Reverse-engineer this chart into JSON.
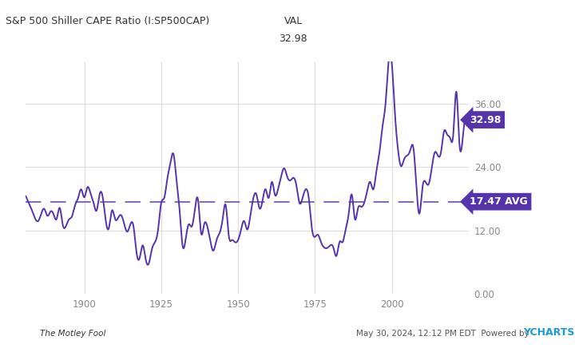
{
  "title_left": "S&P 500 Shiller CAPE Ratio (I:SP500CAP)",
  "title_center": "VAL",
  "value_center": "32.98",
  "current_value": 32.98,
  "avg_value": 17.47,
  "avg_label": "17.47 AVG",
  "current_label": "32.98",
  "line_color": "#5533aa",
  "avg_line_color": "#7755bb",
  "label_bg_color": "#5533aa",
  "label_text_color": "#ffffff",
  "ylim": [
    0,
    44
  ],
  "yticks": [
    0.0,
    12.0,
    24.0,
    36.0
  ],
  "ytick_labels": [
    "0.00",
    "12.00",
    "24.00",
    "36.00"
  ],
  "bg_color": "#ffffff",
  "plot_bg_color": "#ffffff",
  "footer_left": "The Motley Fool",
  "footer_right": "May 30, 2024, 12:12 PM EDT  Powered by ",
  "footer_ycharts": "YCHARTS",
  "grid_color": "#dddddd",
  "line_width": 1.4,
  "xticks": [
    1900,
    1925,
    1950,
    1975,
    2000
  ],
  "xmin": 1881,
  "xmax": 2025,
  "cape_years": [
    1881,
    1882,
    1883,
    1884,
    1885,
    1886,
    1887,
    1888,
    1889,
    1890,
    1891,
    1892,
    1893,
    1894,
    1895,
    1896,
    1897,
    1898,
    1899,
    1900,
    1901,
    1902,
    1903,
    1904,
    1905,
    1906,
    1907,
    1908,
    1909,
    1910,
    1911,
    1912,
    1913,
    1914,
    1915,
    1916,
    1917,
    1918,
    1919,
    1920,
    1921,
    1922,
    1923,
    1924,
    1925,
    1926,
    1927,
    1928,
    1929,
    1930,
    1931,
    1932,
    1933,
    1934,
    1935,
    1936,
    1937,
    1938,
    1939,
    1940,
    1941,
    1942,
    1943,
    1944,
    1945,
    1946,
    1947,
    1948,
    1949,
    1950,
    1951,
    1952,
    1953,
    1954,
    1955,
    1956,
    1957,
    1958,
    1959,
    1960,
    1961,
    1962,
    1963,
    1964,
    1965,
    1966,
    1967,
    1968,
    1969,
    1970,
    1971,
    1972,
    1973,
    1974,
    1975,
    1976,
    1977,
    1978,
    1979,
    1980,
    1981,
    1982,
    1983,
    1984,
    1985,
    1986,
    1987,
    1988,
    1989,
    1990,
    1991,
    1992,
    1993,
    1994,
    1995,
    1996,
    1997,
    1998,
    1999,
    2000,
    2001,
    2002,
    2003,
    2004,
    2005,
    2006,
    2007,
    2008,
    2009,
    2010,
    2011,
    2012,
    2013,
    2014,
    2015,
    2016,
    2017,
    2018,
    2019,
    2020,
    2021,
    2022,
    2023,
    2024
  ],
  "cape_values": [
    18.5,
    17.2,
    15.8,
    14.3,
    13.8,
    15.2,
    16.1,
    14.8,
    15.6,
    15.1,
    14.2,
    16.3,
    13.1,
    12.8,
    14.1,
    14.7,
    16.8,
    18.2,
    19.8,
    18.3,
    20.2,
    19.1,
    17.3,
    15.8,
    18.9,
    18.3,
    13.8,
    12.5,
    15.8,
    14.2,
    14.4,
    14.9,
    13.2,
    11.8,
    13.2,
    12.8,
    7.8,
    6.8,
    9.2,
    6.5,
    5.8,
    8.5,
    9.8,
    12.2,
    17.2,
    18.2,
    21.8,
    24.8,
    26.5,
    21.5,
    15.8,
    9.0,
    10.5,
    13.2,
    12.8,
    16.2,
    17.8,
    11.5,
    13.2,
    12.8,
    10.0,
    8.2,
    10.2,
    11.5,
    14.2,
    16.8,
    11.0,
    10.2,
    9.8,
    10.2,
    12.2,
    13.8,
    12.2,
    14.8,
    18.2,
    18.8,
    16.2,
    17.8,
    19.8,
    18.2,
    21.2,
    18.8,
    19.8,
    22.2,
    23.8,
    22.2,
    21.5,
    22.0,
    20.5,
    17.2,
    18.2,
    19.8,
    18.2,
    12.5,
    10.8,
    11.2,
    9.8,
    8.8,
    8.7,
    9.2,
    8.8,
    7.2,
    9.8,
    9.8,
    12.2,
    15.2,
    18.8,
    14.2,
    16.2,
    16.5,
    17.2,
    19.5,
    21.2,
    19.8,
    23.2,
    26.8,
    31.8,
    36.2,
    44.2,
    43.8,
    34.5,
    27.5,
    24.2,
    25.5,
    26.2,
    27.2,
    27.8,
    20.5,
    15.2,
    20.2,
    21.2,
    20.8,
    23.8,
    26.8,
    26.2,
    26.8,
    30.8,
    30.2,
    29.5,
    30.2,
    38.3,
    28.5,
    29.0,
    32.98
  ]
}
